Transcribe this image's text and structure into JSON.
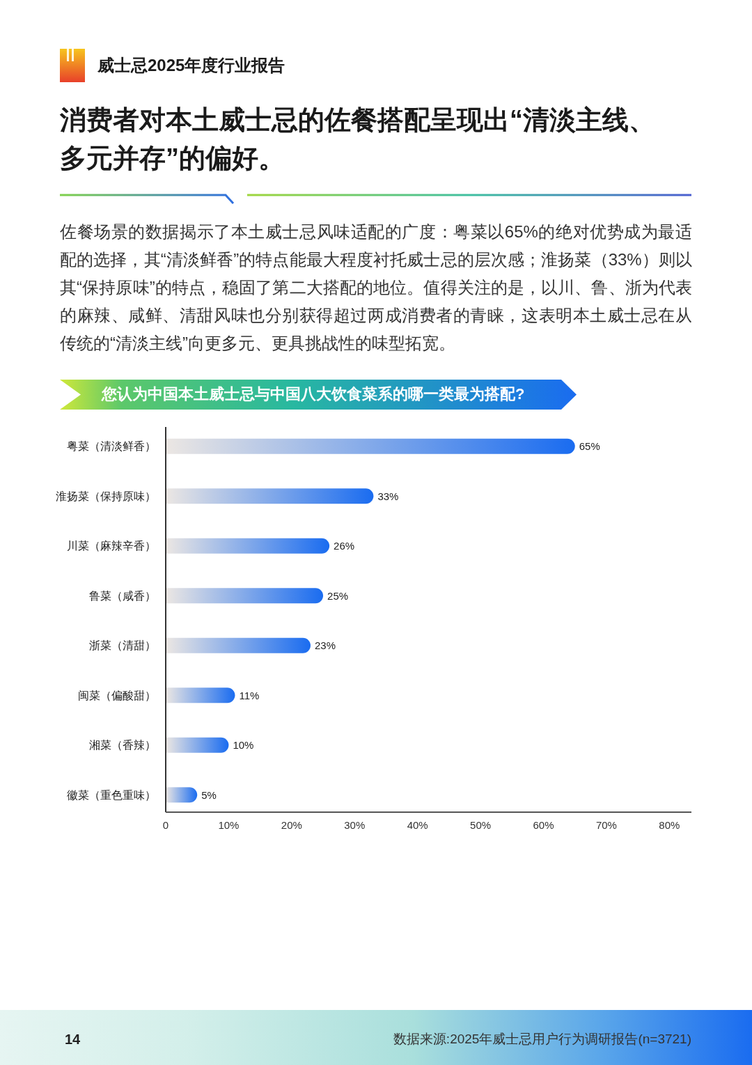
{
  "chart_data": {
    "type": "bar",
    "orientation": "horizontal",
    "title": "消费者对本土威士忌的佐餐搭配呈现出“清淡主线、多元并存”的偏好。",
    "subtitle": "您认为中国本土威士忌与中国八大饮食菜系的哪一类最为搭配?",
    "categories": [
      "粤菜（清淡鲜香）",
      "淮扬菜（保持原味）",
      "川菜（麻辣辛香）",
      "鲁菜（咸香）",
      "浙菜（清甜）",
      "闽菜（偏酸甜）",
      "湘菜（香辣）",
      "徽菜（重色重味）"
    ],
    "values": [
      65,
      33,
      26,
      25,
      23,
      11,
      10,
      5
    ],
    "color": "#1a6cf0",
    "value_labels": [
      "65%",
      "33%",
      "26%",
      "25%",
      "23%",
      "11%",
      "10%",
      "5%"
    ],
    "xlim": [
      0,
      83.5
    ],
    "xticks": [
      0,
      {
        "value": 10,
        "label": "10%"
      },
      {
        "value": 20,
        "label": "20%"
      },
      {
        "value": 30,
        "label": "30%"
      },
      {
        "value": 40,
        "label": "40%"
      },
      {
        "value": 50,
        "label": "50%"
      },
      {
        "value": 60,
        "label": "60%"
      },
      {
        "value": 70,
        "label": "70%"
      },
      {
        "value": 80,
        "label": "80%"
      }
    ],
    "annotations": [
      "威士忌2025年度行业报告",
      "佐餐场景的数据揭示了本土威士忌风味适配的广度：粤菜以65%的绝对优势成为最适配的选择，其“清淡鲜香”的特点能最大程度衬托威士忌的层次感；淮扬菜（33%）则以其“保持原味”的特点，稳固了第二大搭配的地位。值得关注的是，以川、鲁、浙为代表的麻辣、咸鲜、清甜风味也分别获得超过两成消费者的青睐，这表明本土威士忌在从传统的“清淡主线”向更多元、更具挑战性的味型拓宽。",
      "14",
      "数据来源:2025年威士忌用户行为调研报告(n=3721)"
    ]
  }
}
